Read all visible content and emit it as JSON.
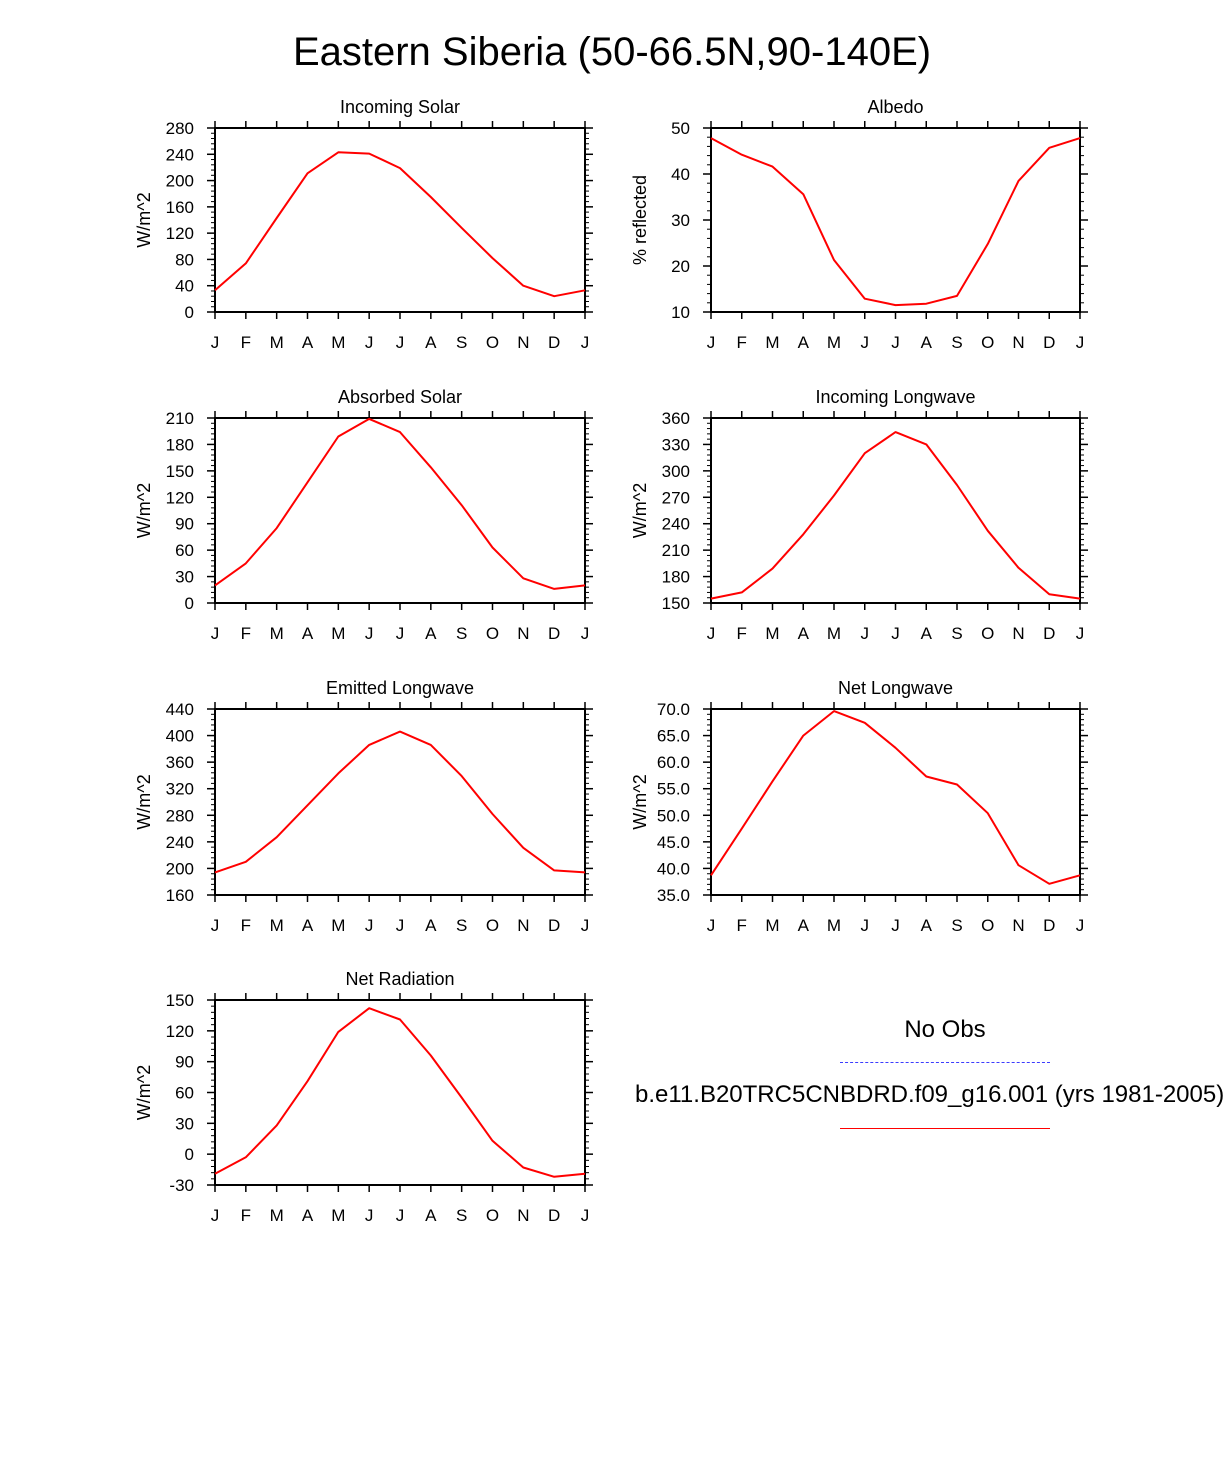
{
  "figure_title": "Eastern Siberia (50-66.5N,90-140E)",
  "legend": {
    "obs_label": "No Obs",
    "model_label": "b.e11.B20TRC5CNBDRD.f09_g16.001 (yrs 1981-2005)",
    "obs_color": "#3c3cff",
    "model_color": "#ff0000"
  },
  "chart_data": [
    {
      "type": "line",
      "title": "Incoming Solar",
      "ylabel": "W/m^2",
      "x": [
        "J",
        "F",
        "M",
        "A",
        "M",
        "J",
        "J",
        "A",
        "S",
        "O",
        "N",
        "D",
        "J"
      ],
      "ylim": [
        0,
        280
      ],
      "yticks": [
        "0",
        "40",
        "80",
        "120",
        "160",
        "200",
        "240",
        "280"
      ],
      "series": [
        {
          "name": "b.e11.B20TRC5CNBDRD.f09_g16.001",
          "color": "#ff0000",
          "values": [
            33,
            74,
            143,
            211,
            243,
            241,
            219,
            175,
            128,
            82,
            40,
            24,
            33
          ]
        }
      ]
    },
    {
      "type": "line",
      "title": "Albedo",
      "ylabel": "% reflected",
      "x": [
        "J",
        "F",
        "M",
        "A",
        "M",
        "J",
        "J",
        "A",
        "S",
        "O",
        "N",
        "D",
        "J"
      ],
      "ylim": [
        10,
        50
      ],
      "yticks": [
        "10",
        "20",
        "30",
        "40",
        "50"
      ],
      "series": [
        {
          "name": "b.e11.B20TRC5CNBDRD.f09_g16.001",
          "color": "#ff0000",
          "values": [
            47.8,
            44.2,
            41.6,
            35.6,
            21.3,
            12.9,
            11.5,
            11.8,
            13.5,
            24.8,
            38.5,
            45.7,
            47.8
          ]
        }
      ]
    },
    {
      "type": "line",
      "title": "Absorbed Solar",
      "ylabel": "W/m^2",
      "x": [
        "J",
        "F",
        "M",
        "A",
        "M",
        "J",
        "J",
        "A",
        "S",
        "O",
        "N",
        "D",
        "J"
      ],
      "ylim": [
        0,
        210
      ],
      "yticks": [
        "0",
        "30",
        "60",
        "90",
        "120",
        "150",
        "180",
        "210"
      ],
      "series": [
        {
          "name": "b.e11.B20TRC5CNBDRD.f09_g16.001",
          "color": "#ff0000",
          "values": [
            20,
            45,
            85,
            137,
            189,
            209,
            194,
            154,
            111,
            63,
            28,
            16,
            20
          ]
        }
      ]
    },
    {
      "type": "line",
      "title": "Incoming Longwave",
      "ylabel": "W/m^2",
      "x": [
        "J",
        "F",
        "M",
        "A",
        "M",
        "J",
        "J",
        "A",
        "S",
        "O",
        "N",
        "D",
        "J"
      ],
      "ylim": [
        150,
        360
      ],
      "yticks": [
        "150",
        "180",
        "210",
        "240",
        "270",
        "300",
        "330",
        "360"
      ],
      "series": [
        {
          "name": "b.e11.B20TRC5CNBDRD.f09_g16.001",
          "color": "#ff0000",
          "values": [
            155,
            162,
            189,
            228,
            272,
            320,
            344,
            330,
            284,
            232,
            190,
            160,
            155
          ]
        }
      ]
    },
    {
      "type": "line",
      "title": "Emitted Longwave",
      "ylabel": "W/m^2",
      "x": [
        "J",
        "F",
        "M",
        "A",
        "M",
        "J",
        "J",
        "A",
        "S",
        "O",
        "N",
        "D",
        "J"
      ],
      "ylim": [
        160,
        440
      ],
      "yticks": [
        "160",
        "200",
        "240",
        "280",
        "320",
        "360",
        "400",
        "440"
      ],
      "series": [
        {
          "name": "b.e11.B20TRC5CNBDRD.f09_g16.001",
          "color": "#ff0000",
          "values": [
            194,
            210,
            247,
            295,
            343,
            386,
            406,
            386,
            339,
            282,
            231,
            197,
            194
          ]
        }
      ]
    },
    {
      "type": "line",
      "title": "Net Longwave",
      "ylabel": "W/m^2",
      "x": [
        "J",
        "F",
        "M",
        "A",
        "M",
        "J",
        "J",
        "A",
        "S",
        "O",
        "N",
        "D",
        "J"
      ],
      "ylim": [
        35.0,
        70.0
      ],
      "yticks": [
        "35.0",
        "40.0",
        "45.0",
        "50.0",
        "55.0",
        "60.0",
        "65.0",
        "70.0"
      ],
      "series": [
        {
          "name": "b.e11.B20TRC5CNBDRD.f09_g16.001",
          "color": "#ff0000",
          "values": [
            38.7,
            47.5,
            56.4,
            65.0,
            69.6,
            67.4,
            62.7,
            57.3,
            55.8,
            50.4,
            40.6,
            37.1,
            38.7
          ]
        }
      ]
    },
    {
      "type": "line",
      "title": "Net Radiation",
      "ylabel": "W/m^2",
      "x": [
        "J",
        "F",
        "M",
        "A",
        "M",
        "J",
        "J",
        "A",
        "S",
        "O",
        "N",
        "D",
        "J"
      ],
      "ylim": [
        -30,
        150
      ],
      "yticks": [
        "-30",
        "0",
        "30",
        "60",
        "90",
        "120",
        "150"
      ],
      "series": [
        {
          "name": "b.e11.B20TRC5CNBDRD.f09_g16.001",
          "color": "#ff0000",
          "values": [
            -19,
            -3,
            28,
            71,
            119,
            142,
            131,
            96,
            55,
            13,
            -13,
            -22,
            -19
          ]
        }
      ]
    }
  ]
}
